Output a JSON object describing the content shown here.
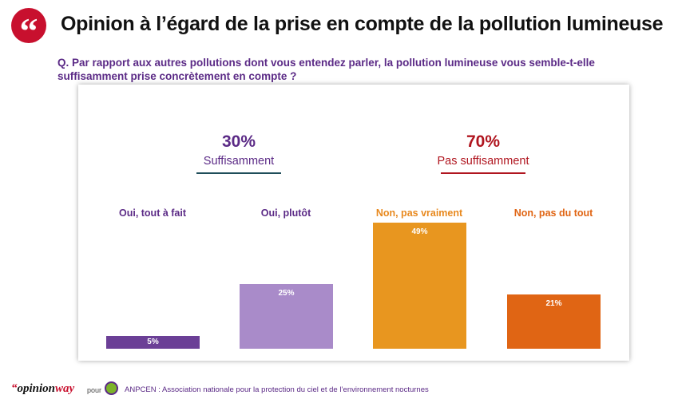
{
  "header": {
    "title": "Opinion à l’égard de la prise en compte de la pollution lumineuse",
    "logo_glyph": "“"
  },
  "question": {
    "line1": "Q. Par rapport aux autres pollutions dont vous entendez parler, la pollution lumineuse vous semble-t-elle",
    "line2": "suffisamment prise concrètement en compte ?"
  },
  "summary": [
    {
      "pct": "30%",
      "label": "Suffisamment",
      "color": "#5b2a86",
      "rule_color": "#1f4e5a"
    },
    {
      "pct": "70%",
      "label": "Pas suffisamment",
      "color": "#b0151f",
      "rule_color": "#b0151f"
    }
  ],
  "chart_data": {
    "type": "bar",
    "categories": [
      "Oui, tout à fait",
      "Oui, plutôt",
      "Non, pas vraiment",
      "Non, pas du tout"
    ],
    "values": [
      5,
      25,
      49,
      21
    ],
    "value_labels": [
      "5%",
      "25%",
      "49%",
      "21%"
    ],
    "category_colors": [
      "#5b2a86",
      "#5b2a86",
      "#e8891e",
      "#e06514"
    ],
    "bar_colors": [
      "#6b3f96",
      "#a98bc9",
      "#e8961f",
      "#e06514"
    ],
    "ylim": [
      0,
      49
    ]
  },
  "footer": {
    "brand_open": "“",
    "brand_opinion": "opinion",
    "brand_way": "way",
    "pour": "pour",
    "anpcen_text": "ANPCEN : Association nationale pour la protection du ciel et de l’environnement nocturnes"
  }
}
